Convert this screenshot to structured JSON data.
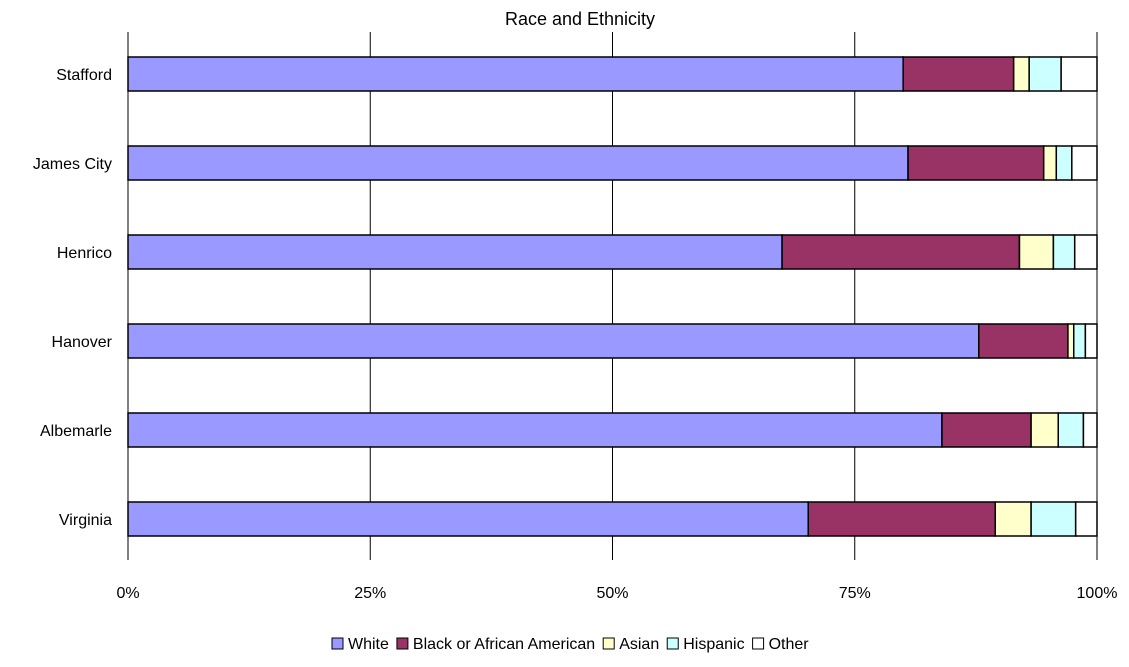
{
  "chart_data": {
    "type": "bar",
    "orientation": "horizontal",
    "stacking": "percent",
    "title": "Race and Ethnicity",
    "categories": [
      "Stafford",
      "James City",
      "Henrico",
      "Hanover",
      "Albemarle",
      "Virginia"
    ],
    "series": [
      {
        "name": "White",
        "color": "#9999ff",
        "values": [
          80.0,
          80.5,
          67.5,
          87.8,
          84.0,
          70.2
        ]
      },
      {
        "name": "Black or African American",
        "color": "#993366",
        "values": [
          11.4,
          14.0,
          24.5,
          9.2,
          9.2,
          19.3
        ]
      },
      {
        "name": "Asian",
        "color": "#ffffcc",
        "values": [
          1.6,
          1.3,
          3.5,
          0.6,
          2.8,
          3.7
        ]
      },
      {
        "name": "Hispanic",
        "color": "#ccffff",
        "values": [
          3.3,
          1.6,
          2.2,
          1.2,
          2.6,
          4.6
        ]
      },
      {
        "name": "Other",
        "color": "#ffffff",
        "values": [
          3.7,
          2.6,
          2.3,
          1.2,
          1.4,
          2.2
        ]
      }
    ],
    "xticks": [
      "0%",
      "25%",
      "50%",
      "75%",
      "100%"
    ],
    "xlim": [
      0,
      100
    ],
    "grid": true,
    "legend_position": "bottom"
  }
}
